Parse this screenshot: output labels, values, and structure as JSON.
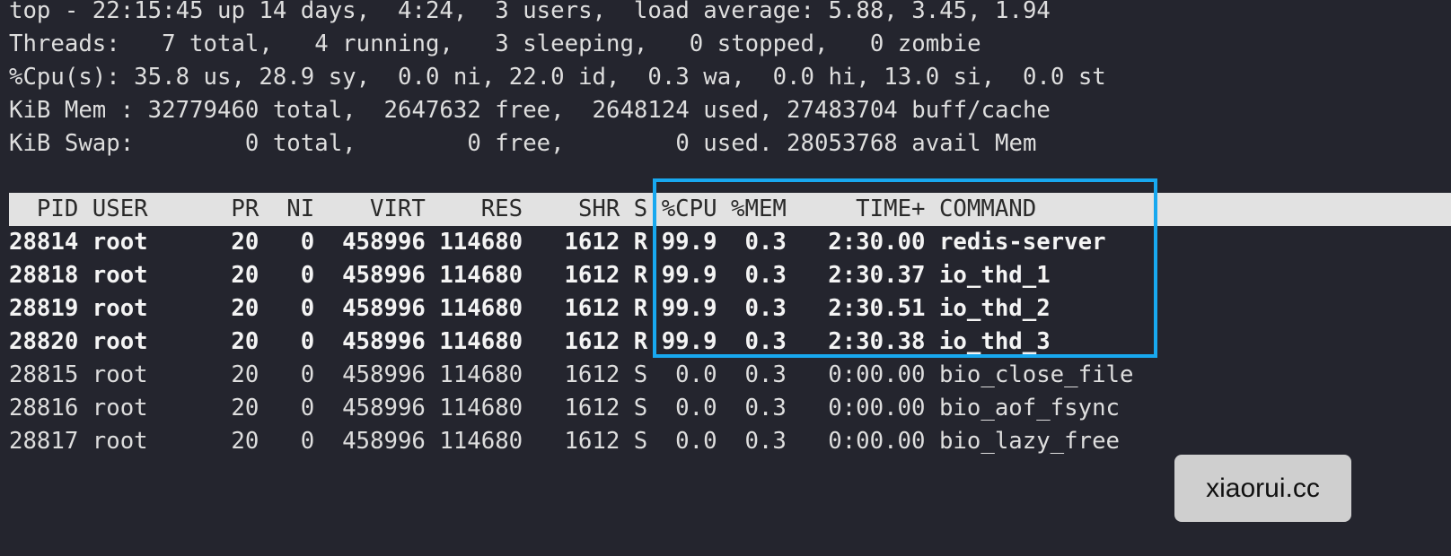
{
  "summary": [
    "top - 22:15:45 up 14 days,  4:24,  3 users,  load average: 5.88, 3.45, 1.94",
    "Threads:   7 total,   4 running,   3 sleeping,   0 stopped,   0 zombie",
    "%Cpu(s): 35.8 us, 28.9 sy,  0.0 ni, 22.0 id,  0.3 wa,  0.0 hi, 13.0 si,  0.0 st",
    "KiB Mem : 32779460 total,  2647632 free,  2648124 used, 27483704 buff/cache",
    "KiB Swap:        0 total,        0 free,        0 used. 28053768 avail Mem"
  ],
  "columns": [
    "PID",
    "USER",
    "PR",
    "NI",
    "VIRT",
    "RES",
    "SHR",
    "S",
    "%CPU",
    "%MEM",
    "TIME+",
    "COMMAND"
  ],
  "rows": [
    [
      "28814",
      "root",
      "20",
      "0",
      "458996",
      "114680",
      "1612",
      "R",
      "99.9",
      "0.3",
      "2:30.00",
      "redis-server"
    ],
    [
      "28818",
      "root",
      "20",
      "0",
      "458996",
      "114680",
      "1612",
      "R",
      "99.9",
      "0.3",
      "2:30.37",
      "io_thd_1"
    ],
    [
      "28819",
      "root",
      "20",
      "0",
      "458996",
      "114680",
      "1612",
      "R",
      "99.9",
      "0.3",
      "2:30.51",
      "io_thd_2"
    ],
    [
      "28820",
      "root",
      "20",
      "0",
      "458996",
      "114680",
      "1612",
      "R",
      "99.9",
      "0.3",
      "2:30.38",
      "io_thd_3"
    ],
    [
      "28815",
      "root",
      "20",
      "0",
      "458996",
      "114680",
      "1612",
      "S",
      "0.0",
      "0.3",
      "0:00.00",
      "bio_close_file"
    ],
    [
      "28816",
      "root",
      "20",
      "0",
      "458996",
      "114680",
      "1612",
      "S",
      "0.0",
      "0.3",
      "0:00.00",
      "bio_aof_fsync"
    ],
    [
      "28817",
      "root",
      "20",
      "0",
      "458996",
      "114680",
      "1612",
      "S",
      "0.0",
      "0.3",
      "0:00.00",
      "bio_lazy_free"
    ]
  ],
  "highlight_color": "#18a8ef",
  "watermark": "xiaorui.cc"
}
